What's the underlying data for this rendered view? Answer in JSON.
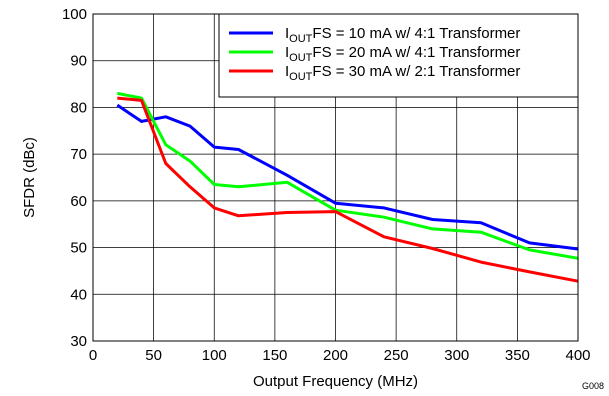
{
  "chart_data": {
    "type": "line",
    "xlabel": "Output Frequency (MHz)",
    "ylabel": "SFDR (dBc)",
    "xlim": [
      0,
      400
    ],
    "ylim": [
      30,
      100
    ],
    "xticks": [
      0,
      50,
      100,
      150,
      200,
      250,
      300,
      350,
      400
    ],
    "yticks": [
      30,
      40,
      50,
      60,
      70,
      80,
      90,
      100
    ],
    "grid": true,
    "legend_position": "top-right",
    "figure_id": "G008",
    "series": [
      {
        "name_prefix": "I",
        "name_sub": "OUT",
        "name_suffix": "FS = 10 mA w/ 4:1 Transformer",
        "color": "#0000ff",
        "x": [
          20,
          40,
          60,
          80,
          100,
          120,
          160,
          200,
          240,
          280,
          320,
          360,
          400
        ],
        "y": [
          80.5,
          77.0,
          78.0,
          76.0,
          71.5,
          71.0,
          65.5,
          59.5,
          58.5,
          56.0,
          55.3,
          51.0,
          49.7
        ]
      },
      {
        "name_prefix": "I",
        "name_sub": "OUT",
        "name_suffix": "FS = 20 mA w/ 4:1 Transformer",
        "color": "#00ff00",
        "x": [
          20,
          40,
          60,
          80,
          100,
          120,
          160,
          200,
          240,
          280,
          320,
          360,
          400
        ],
        "y": [
          83.0,
          82.0,
          72.0,
          68.5,
          63.5,
          63.0,
          64.0,
          58.0,
          56.5,
          54.0,
          53.3,
          49.5,
          47.7
        ]
      },
      {
        "name_prefix": "I",
        "name_sub": "OUT",
        "name_suffix": "FS = 30 mA w/ 2:1 Transformer",
        "color": "#ff0000",
        "x": [
          20,
          40,
          60,
          80,
          100,
          120,
          160,
          200,
          240,
          280,
          320,
          360,
          400
        ],
        "y": [
          82.0,
          81.5,
          68.0,
          63.0,
          58.5,
          56.8,
          57.5,
          57.7,
          52.3,
          49.8,
          46.9,
          44.8,
          42.8
        ]
      }
    ]
  }
}
